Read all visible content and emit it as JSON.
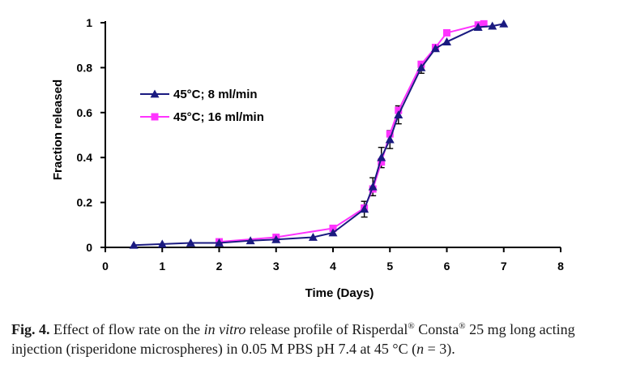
{
  "chart_data": {
    "type": "line",
    "title": "",
    "xlabel": "Time (Days)",
    "ylabel": "Fraction released",
    "xlim": [
      0,
      8
    ],
    "ylim": [
      0,
      1
    ],
    "xticks": [
      "0",
      "1",
      "2",
      "3",
      "4",
      "5",
      "6",
      "7",
      "8"
    ],
    "yticks": [
      "0",
      "0.2",
      "0.4",
      "0.6",
      "0.8",
      "1"
    ],
    "grid": false,
    "legend_position": "upper-left",
    "series": [
      {
        "name": "45°C; 8 ml/min",
        "color": "#1a1a80",
        "marker": "triangle",
        "x": [
          0.5,
          1.0,
          1.5,
          2.0,
          2.55,
          3.0,
          3.65,
          4.0,
          4.55,
          4.7,
          4.85,
          5.0,
          5.15,
          5.55,
          5.8,
          6.0,
          6.55,
          6.8,
          7.0
        ],
        "y": [
          0.01,
          0.015,
          0.02,
          0.02,
          0.03,
          0.035,
          0.045,
          0.065,
          0.17,
          0.27,
          0.4,
          0.48,
          0.59,
          0.8,
          0.885,
          0.915,
          0.98,
          0.985,
          0.995
        ],
        "err": [
          0,
          0,
          0,
          0,
          0,
          0,
          0,
          0,
          0.035,
          0.04,
          0.045,
          0.04,
          0.04,
          0.025,
          0,
          0,
          0,
          0,
          0
        ]
      },
      {
        "name": "45°C; 16 ml/min",
        "color": "#ff33ff",
        "marker": "square",
        "x": [
          2.0,
          3.0,
          4.0,
          4.55,
          4.7,
          4.85,
          5.0,
          5.15,
          5.55,
          5.8,
          6.0,
          6.55,
          6.65
        ],
        "y": [
          0.025,
          0.045,
          0.085,
          0.175,
          0.26,
          0.38,
          0.505,
          0.61,
          0.815,
          0.89,
          0.955,
          0.99,
          0.995
        ]
      }
    ]
  },
  "caption": {
    "fig_label": "Fig. 4.",
    "text_1": "Effect of flow rate on the",
    "text_italic": "in vitro",
    "text_2": "release profile of Risperdal",
    "reg_1": "®",
    "text_3": "Consta",
    "reg_2": "®",
    "text_4": "25 mg long acting injection (risperidone microspheres) in 0.05 M PBS pH 7.4 at 45 °C (",
    "n_var": "n",
    "text_5": " = 3)."
  }
}
